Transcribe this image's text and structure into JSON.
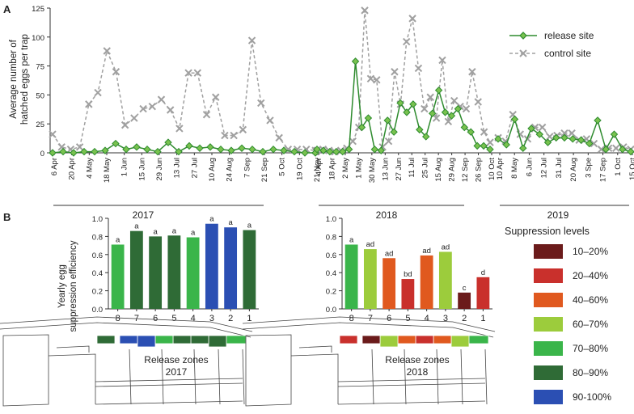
{
  "panels": {
    "a": "A",
    "b": "B"
  },
  "chart_data": [
    {
      "type": "line",
      "ylabel": "Average number of hatched eggs per trap",
      "ylim": [
        0,
        125
      ],
      "yticks": [
        0,
        25,
        50,
        75,
        100,
        125
      ],
      "x_labels": [
        "6 Apr",
        "20 Apr",
        "4 May",
        "18 May",
        "1 Jun",
        "15 Jun",
        "29 Jun",
        "13 Jul",
        "27 Jul",
        "10 Aug",
        "24 Aug",
        "7 Sep",
        "21 Sep",
        "5 Oct",
        "19 Oct",
        "21 Nov",
        "4 Apr",
        "18 Apr",
        "2 May",
        "1 May",
        "30 May",
        "13 Jun",
        "27 Jun",
        "11 Jul",
        "25 Jul",
        "15 Aug",
        "29 Aug",
        "12 Sep",
        "26 Sep",
        "10 Oct",
        "10 Apr",
        "8 May",
        "6 Jun",
        "12 Jul",
        "31 Jul",
        "20 Aug",
        "3 Spe",
        "17 Sep",
        "1 Oct",
        "15 Oct"
      ],
      "years": [
        "2017",
        "2018",
        "2019"
      ],
      "legend": [
        "release site",
        "control site"
      ],
      "series": [
        {
          "name": "release site",
          "color": "#2e8b2e",
          "segments": [
            [
              0,
              1,
              0,
              1,
              1,
              2,
              8,
              3,
              5,
              3,
              1,
              9,
              1,
              6,
              4,
              5,
              3,
              2,
              4,
              3,
              1,
              3,
              2,
              1,
              0,
              0
            ],
            [
              3,
              2,
              1,
              1,
              1,
              3,
              79,
              22,
              30,
              3,
              2,
              28,
              18,
              43,
              35,
              42,
              20,
              14,
              34,
              54,
              35,
              32,
              38,
              22,
              18,
              6,
              6,
              3
            ],
            [
              12,
              7,
              29,
              4,
              21,
              16,
              9,
              13,
              13,
              12,
              11,
              8,
              28,
              3,
              16,
              3,
              1
            ]
          ]
        },
        {
          "name": "control site",
          "color": "#a0a0a0",
          "segments": [
            [
              16,
              5,
              3,
              5,
              42,
              52,
              88,
              70,
              24,
              30,
              38,
              40,
              46,
              37,
              21,
              69,
              69,
              33,
              48,
              15,
              15,
              20,
              97,
              43,
              28,
              13,
              3,
              3,
              3,
              2
            ],
            [
              2,
              3,
              2,
              1,
              2,
              4,
              10,
              22,
              123,
              64,
              63,
              5,
              10,
              70,
              42,
              96,
              116,
              73,
              38,
              48,
              30,
              80,
              27,
              45,
              40,
              38,
              70,
              44,
              18,
              9
            ],
            [
              13,
              10,
              33,
              16,
              12,
              22,
              22,
              14,
              15,
              17,
              17,
              11,
              12,
              8,
              3,
              4,
              4,
              5,
              3
            ]
          ]
        }
      ]
    },
    {
      "type": "bar",
      "ylabel": "Yearly egg suppression efficiency",
      "ylim": [
        0,
        1.0
      ],
      "yticks": [
        "0.0",
        "0.2",
        "0.4",
        "0.6",
        "0.8",
        "1.0"
      ],
      "categories": [
        "8",
        "7",
        "6",
        "5",
        "4",
        "3",
        "2",
        "1"
      ],
      "values": [
        0.71,
        0.86,
        0.8,
        0.81,
        0.79,
        0.94,
        0.9,
        0.87
      ],
      "letters": [
        "a",
        "a",
        "a",
        "a",
        "a",
        "a",
        "a",
        "a"
      ],
      "colors": [
        "#3ab54a",
        "#2f6b36",
        "#2f6b36",
        "#2f6b36",
        "#3ab54a",
        "#2b4fb3",
        "#2b4fb3",
        "#2f6b36"
      ],
      "map_label": "Release zones",
      "year": "2017"
    },
    {
      "type": "bar",
      "ylabel": "",
      "ylim": [
        0,
        1.0
      ],
      "yticks": [
        "0.0",
        "0.2",
        "0.4",
        "0.6",
        "0.8",
        "1.0"
      ],
      "categories": [
        "8",
        "7",
        "6",
        "5",
        "4",
        "3",
        "2",
        "1"
      ],
      "values": [
        0.71,
        0.66,
        0.56,
        0.33,
        0.59,
        0.63,
        0.18,
        0.35
      ],
      "letters": [
        "a",
        "ad",
        "ad",
        "bd",
        "ad",
        "ad",
        "c",
        "d"
      ],
      "colors": [
        "#3ab54a",
        "#9ccc3c",
        "#e0591f",
        "#c9302c",
        "#e0591f",
        "#9ccc3c",
        "#6b1b1b",
        "#c9302c"
      ],
      "map_label": "Release zones",
      "year": "2018"
    }
  ],
  "suppression_legend": {
    "title": "Suppression levels",
    "items": [
      {
        "label": "10–20%",
        "color": "#6b1b1b"
      },
      {
        "label": "20–40%",
        "color": "#c9302c"
      },
      {
        "label": "40–60%",
        "color": "#e0591f"
      },
      {
        "label": "60–70%",
        "color": "#9ccc3c"
      },
      {
        "label": "70–80%",
        "color": "#3ab54a"
      },
      {
        "label": "80–90%",
        "color": "#2f6b36"
      },
      {
        "label": "90-100%",
        "color": "#2b4fb3"
      }
    ]
  }
}
